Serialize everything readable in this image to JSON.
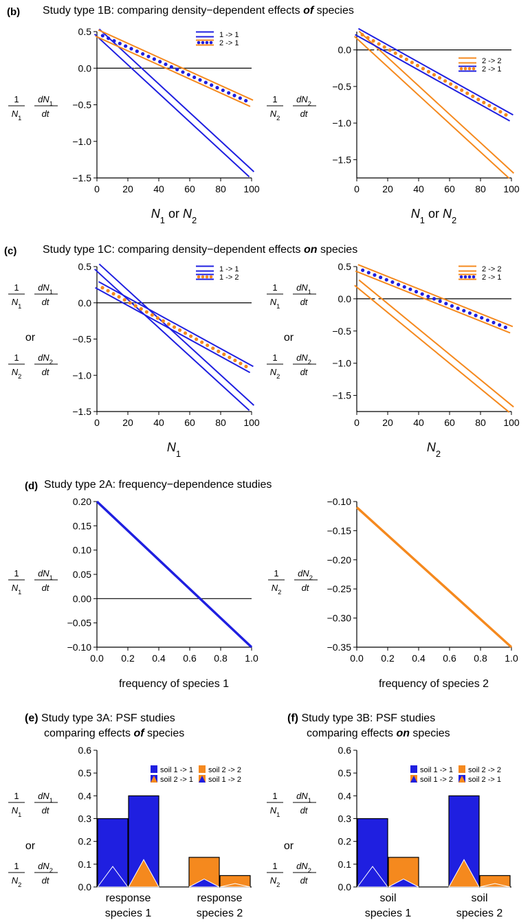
{
  "chart_data": [
    {
      "id": "b-left",
      "type": "line",
      "panel_letter": "(b)",
      "section_title": "Study type 1B: comparing density−dependent effects ",
      "section_title_emph": "of",
      "section_title_tail": " species",
      "ylabel": {
        "num": "1",
        "den": "N",
        "den_sub": "1",
        "num2": "dN",
        "num2_sub": "1",
        "den2": "dt"
      },
      "xlabel": {
        "a": "N",
        "a_sub": "1",
        "mid": " or ",
        "b": "N",
        "b_sub": "2"
      },
      "xlim": [
        0,
        100
      ],
      "ylim": [
        -1.5,
        0.5
      ],
      "xticks": [
        "0",
        "20",
        "40",
        "60",
        "80",
        "100"
      ],
      "yticks": [
        "−1.5",
        "−1.0",
        "−0.5",
        "0.0",
        "0.5"
      ],
      "legend": [
        {
          "label": "1 -> 1",
          "band": "#1f1fe0",
          "dot": "#ffffff"
        },
        {
          "label": "2 -> 1",
          "band": "#f5891e",
          "dot": "#1f1fe0"
        }
      ],
      "series": [
        {
          "name": "1 -> 1",
          "band": "#1f1fe0",
          "dot": "#ffffff",
          "x": [
            0,
            100
          ],
          "y": [
            0.5,
            -1.45
          ]
        },
        {
          "name": "2 -> 1",
          "band": "#f5891e",
          "dot": "#1f1fe0",
          "x": [
            0,
            100
          ],
          "y": [
            0.48,
            -0.48
          ]
        }
      ]
    },
    {
      "id": "b-right",
      "type": "line",
      "ylabel": {
        "num": "1",
        "den": "N",
        "den_sub": "2",
        "num2": "dN",
        "num2_sub": "2",
        "den2": "dt"
      },
      "xlabel": {
        "a": "N",
        "a_sub": "1",
        "mid": " or ",
        "b": "N",
        "b_sub": "2"
      },
      "xlim": [
        0,
        100
      ],
      "ylim": [
        -1.75,
        0.25
      ],
      "xticks": [
        "0",
        "20",
        "40",
        "60",
        "80",
        "100"
      ],
      "yticks": [
        "−1.5",
        "−1.0",
        "−0.5",
        "0.0"
      ],
      "legend": [
        {
          "label": "2 -> 2",
          "band": "#f5891e",
          "dot": "#ffffff"
        },
        {
          "label": "2 -> 1",
          "band": "#1f1fe0",
          "dot": "#f5891e"
        }
      ],
      "series": [
        {
          "name": "2 -> 2",
          "band": "#f5891e",
          "dot": "#ffffff",
          "x": [
            0,
            100
          ],
          "y": [
            0.22,
            -1.72
          ]
        },
        {
          "name": "2 -> 1",
          "band": "#1f1fe0",
          "dot": "#f5891e",
          "x": [
            0,
            100
          ],
          "y": [
            0.25,
            -0.93
          ]
        }
      ]
    },
    {
      "id": "c-left",
      "type": "line",
      "panel_letter": "(c)",
      "section_title": "Study type 1C: comparing density−dependent effects ",
      "section_title_emph": "on",
      "section_title_tail": " species",
      "ylabel_pair": [
        {
          "num": "1",
          "den": "N",
          "den_sub": "1",
          "num2": "dN",
          "num2_sub": "1",
          "den2": "dt"
        },
        {
          "num": "1",
          "den": "N",
          "den_sub": "2",
          "num2": "dN",
          "num2_sub": "2",
          "den2": "dt"
        }
      ],
      "ylabel_or": "or",
      "xlabel": {
        "a": "N",
        "a_sub": "1"
      },
      "xlim": [
        0,
        100
      ],
      "ylim": [
        -1.5,
        0.5
      ],
      "xticks": [
        "0",
        "20",
        "40",
        "60",
        "80",
        "100"
      ],
      "yticks": [
        "−1.5",
        "−1.0",
        "−0.5",
        "0.0",
        "0.5"
      ],
      "legend": [
        {
          "label": "1 -> 1",
          "band": "#1f1fe0",
          "dot": "#ffffff"
        },
        {
          "label": "1 -> 2",
          "band": "#1f1fe0",
          "dot": "#f5891e"
        }
      ],
      "series": [
        {
          "name": "1 -> 1",
          "band": "#1f1fe0",
          "dot": "#ffffff",
          "x": [
            0,
            100
          ],
          "y": [
            0.5,
            -1.45
          ]
        },
        {
          "name": "1 -> 2",
          "band": "#1f1fe0",
          "dot": "#f5891e",
          "x": [
            0,
            100
          ],
          "y": [
            0.25,
            -0.92
          ]
        }
      ]
    },
    {
      "id": "c-right",
      "type": "line",
      "ylabel_pair": [
        {
          "num": "1",
          "den": "N",
          "den_sub": "1",
          "num2": "dN",
          "num2_sub": "1",
          "den2": "dt"
        },
        {
          "num": "1",
          "den": "N",
          "den_sub": "2",
          "num2": "dN",
          "num2_sub": "2",
          "den2": "dt"
        }
      ],
      "ylabel_or": "or",
      "xlabel": {
        "a": "N",
        "a_sub": "2"
      },
      "xlim": [
        0,
        100
      ],
      "ylim": [
        -1.75,
        0.5
      ],
      "xticks": [
        "0",
        "20",
        "40",
        "60",
        "80",
        "100"
      ],
      "yticks": [
        "−1.5",
        "−1.0",
        "−0.5",
        "0.0",
        "0.5"
      ],
      "legend": [
        {
          "label": "2 -> 2",
          "band": "#f5891e",
          "dot": "#ffffff"
        },
        {
          "label": "2 -> 1",
          "band": "#f5891e",
          "dot": "#1f1fe0"
        }
      ],
      "series": [
        {
          "name": "2 -> 2",
          "band": "#f5891e",
          "dot": "#ffffff",
          "x": [
            0,
            100
          ],
          "y": [
            0.25,
            -1.72
          ]
        },
        {
          "name": "2 -> 1",
          "band": "#f5891e",
          "dot": "#1f1fe0",
          "x": [
            0,
            100
          ],
          "y": [
            0.48,
            -0.48
          ]
        }
      ]
    },
    {
      "id": "d-left",
      "type": "line",
      "panel_letter": "(d)",
      "section_title": "Study type 2A: frequency−dependence studies",
      "ylabel": {
        "num": "1",
        "den": "N",
        "den_sub": "1",
        "num2": "dN",
        "num2_sub": "1",
        "den2": "dt"
      },
      "xlabel_text": "frequency of species 1",
      "xlim": [
        0,
        1
      ],
      "ylim": [
        -0.1,
        0.2
      ],
      "xticks": [
        "0.0",
        "0.2",
        "0.4",
        "0.6",
        "0.8",
        "1.0"
      ],
      "yticks": [
        "−0.10",
        "−0.05",
        "0.00",
        "0.05",
        "0.10",
        "0.15",
        "0.20"
      ],
      "series": [
        {
          "color": "#1f1fe0",
          "x": [
            0,
            1
          ],
          "y": [
            0.2,
            -0.1
          ]
        }
      ]
    },
    {
      "id": "d-right",
      "type": "line",
      "ylabel": {
        "num": "1",
        "den": "N",
        "den_sub": "2",
        "num2": "dN",
        "num2_sub": "2",
        "den2": "dt"
      },
      "xlabel_text": "frequency of species 2",
      "xlim": [
        0,
        1
      ],
      "ylim": [
        -0.35,
        -0.1
      ],
      "xticks": [
        "0.0",
        "0.2",
        "0.4",
        "0.6",
        "0.8",
        "1.0"
      ],
      "yticks": [
        "−0.35",
        "−0.30",
        "−0.25",
        "−0.20",
        "−0.15",
        "−0.10"
      ],
      "series": [
        {
          "color": "#f5891e",
          "x": [
            0,
            1
          ],
          "y": [
            -0.11,
            -0.35
          ]
        }
      ]
    },
    {
      "id": "e",
      "type": "bar",
      "panel_letter": "(e)",
      "title_line1": "Study type 3A: PSF studies",
      "title_line2": "comparing effects ",
      "title_emph": "of",
      "title_tail": " species",
      "ylabel_pair": [
        {
          "num": "1",
          "den": "N",
          "den_sub": "1",
          "num2": "dN",
          "num2_sub": "1",
          "den2": "dt"
        },
        {
          "num": "1",
          "den": "N",
          "den_sub": "2",
          "num2": "dN",
          "num2_sub": "2",
          "den2": "dt"
        }
      ],
      "ylabel_or": "or",
      "ylim": [
        0,
        0.6
      ],
      "yticks": [
        "0.0",
        "0.1",
        "0.2",
        "0.3",
        "0.4",
        "0.5",
        "0.6"
      ],
      "legend": [
        {
          "label": "soil 1 -> 1",
          "fill": "#1f1fe0",
          "tri": null
        },
        {
          "label": "soil 2 -> 2",
          "fill": "#f5891e",
          "tri": null
        },
        {
          "label": "soil 2 -> 1",
          "fill": "#1f1fe0",
          "tri": "#f5891e"
        },
        {
          "label": "soil 1 -> 2",
          "fill": "#f5891e",
          "tri": "#1f1fe0"
        }
      ],
      "groups": [
        {
          "label_line1": "response",
          "label_line2": "species 1"
        },
        {
          "label_line1": "response",
          "label_line2": "species 2"
        }
      ],
      "bars": [
        {
          "group": 0,
          "value": 0.3,
          "fill": "#1f1fe0",
          "tri_value": 0.09,
          "tri": "#1f1fe0"
        },
        {
          "group": 0,
          "value": 0.4,
          "fill": "#1f1fe0",
          "tri_value": 0.12,
          "tri": "#f5891e"
        },
        {
          "group": 1,
          "value": 0.13,
          "fill": "#f5891e",
          "tri_value": 0.035,
          "tri": "#1f1fe0"
        },
        {
          "group": 1,
          "value": 0.05,
          "fill": "#f5891e",
          "tri_value": 0.015,
          "tri": "#f5891e"
        }
      ]
    },
    {
      "id": "f",
      "type": "bar",
      "panel_letter": "(f)",
      "title_line1": "Study type 3B: PSF studies",
      "title_line2": "comparing effects ",
      "title_emph": "on",
      "title_tail": " species",
      "ylabel_pair": [
        {
          "num": "1",
          "den": "N",
          "den_sub": "1",
          "num2": "dN",
          "num2_sub": "1",
          "den2": "dt"
        },
        {
          "num": "1",
          "den": "N",
          "den_sub": "2",
          "num2": "dN",
          "num2_sub": "2",
          "den2": "dt"
        }
      ],
      "ylabel_or": "or",
      "ylim": [
        0,
        0.6
      ],
      "yticks": [
        "0.0",
        "0.1",
        "0.2",
        "0.3",
        "0.4",
        "0.5",
        "0.6"
      ],
      "legend": [
        {
          "label": "soil 1 -> 1",
          "fill": "#1f1fe0",
          "tri": null
        },
        {
          "label": "soil 2 -> 2",
          "fill": "#f5891e",
          "tri": null
        },
        {
          "label": "soil 1 -> 2",
          "fill": "#f5891e",
          "tri": "#1f1fe0"
        },
        {
          "label": "soil 2 -> 1",
          "fill": "#1f1fe0",
          "tri": "#f5891e"
        }
      ],
      "groups": [
        {
          "label_line1": "soil",
          "label_line2": "species 1"
        },
        {
          "label_line1": "soil",
          "label_line2": "species 2"
        }
      ],
      "bars": [
        {
          "group": 0,
          "value": 0.3,
          "fill": "#1f1fe0",
          "tri_value": 0.09,
          "tri": "#1f1fe0"
        },
        {
          "group": 0,
          "value": 0.13,
          "fill": "#f5891e",
          "tri_value": 0.035,
          "tri": "#1f1fe0"
        },
        {
          "group": 1,
          "value": 0.4,
          "fill": "#1f1fe0",
          "tri_value": 0.12,
          "tri": "#f5891e"
        },
        {
          "group": 1,
          "value": 0.05,
          "fill": "#f5891e",
          "tri_value": 0.015,
          "tri": "#f5891e"
        }
      ]
    }
  ]
}
